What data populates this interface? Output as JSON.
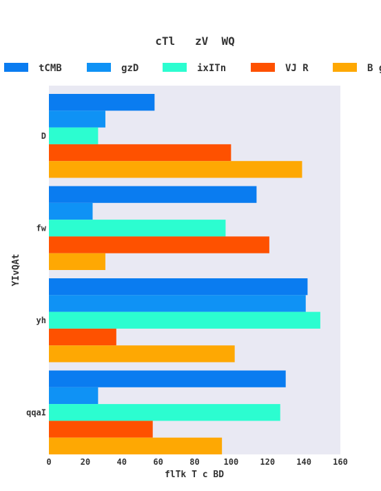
{
  "chart_data": {
    "type": "bar",
    "orientation": "horizontal",
    "title": "cTl   zV  WQ",
    "xlabel": "flTk T c BD",
    "ylabel": "YIvQAt",
    "categories": [
      "D",
      "fw",
      "yh",
      "qqaI"
    ],
    "xlim": [
      0,
      160
    ],
    "xticks": [
      "0",
      "20",
      "40",
      "60",
      "80",
      "100",
      "120",
      "140",
      "160"
    ],
    "grid": false,
    "legend_position": "top",
    "series": [
      {
        "name": "tCMB",
        "color": "#0a7cf0",
        "values": [
          58,
          114,
          142,
          130
        ]
      },
      {
        "name": "gzD",
        "color": "#0f92f5",
        "values": [
          31,
          24,
          141,
          27
        ]
      },
      {
        "name": "ixITn",
        "color": "#2cfdd0",
        "values": [
          27,
          97,
          149,
          127
        ]
      },
      {
        "name": "VJ R",
        "color": "#fe5100",
        "values": [
          100,
          121,
          37,
          57
        ]
      },
      {
        "name": "B g",
        "color": "#fea803",
        "values": [
          139,
          31,
          102,
          95
        ]
      }
    ],
    "plot_background": "#e9e9f3"
  }
}
